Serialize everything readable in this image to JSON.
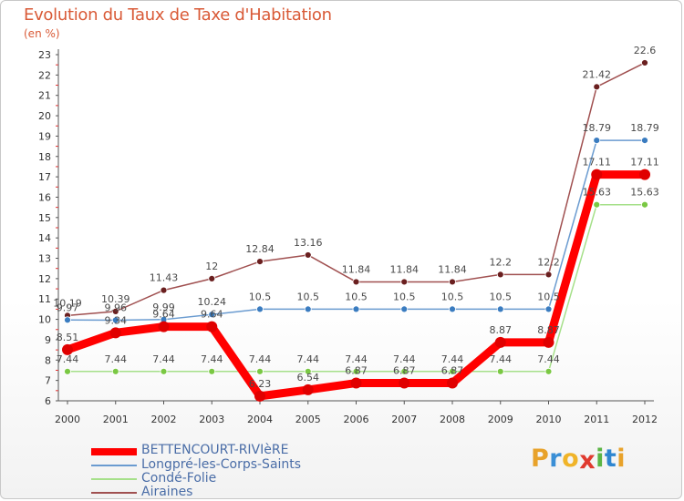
{
  "header": {
    "title": "Evolution du Taux de Taxe d'Habitation",
    "subtitle": "(en %)"
  },
  "brand": {
    "letters": [
      "P",
      "r",
      "o",
      "x",
      "i",
      "t",
      "i"
    ],
    "colors": [
      "#e8a22a",
      "#3a8fd6",
      "#f0b429",
      "#e03a2f",
      "#5bb545",
      "#2f86d0",
      "#e8a22a"
    ]
  },
  "chart_data": {
    "type": "line",
    "title": "Evolution du Taux de Taxe d'Habitation",
    "ylabel": "(en %)",
    "xlabel": "",
    "x": [
      "2000",
      "2001",
      "2002",
      "2003",
      "2004",
      "2005",
      "2006",
      "2007",
      "2008",
      "2009",
      "2010",
      "2011",
      "2012"
    ],
    "ylim": [
      6,
      23
    ],
    "yticks": [
      "6",
      "7",
      "8",
      "9",
      "10",
      "11",
      "12",
      "13",
      "14",
      "15",
      "16",
      "17",
      "18",
      "19",
      "20",
      "21",
      "22",
      "23"
    ],
    "grid": false,
    "legend_position": "bottom-left",
    "series": [
      {
        "name": "BETTENCOURT-RIVIèRE",
        "color": "#ff0000",
        "marker": "#e00000",
        "weight": "thick",
        "values": [
          8.51,
          9.34,
          9.64,
          9.64,
          6.23,
          6.54,
          6.87,
          6.87,
          6.87,
          8.87,
          8.87,
          17.11,
          17.11
        ],
        "labels": [
          "8.51",
          "9.34",
          "9.64",
          "9.64",
          "6.23",
          "6.54",
          "6.87",
          "6.87",
          "6.87",
          "8.87",
          "8.87",
          "17.11",
          "17.11"
        ]
      },
      {
        "name": "Longpré-les-Corps-Saints",
        "color": "#6a9bd0",
        "marker": "#3a7cc0",
        "weight": "thin",
        "values": [
          9.97,
          9.96,
          9.99,
          10.24,
          10.5,
          10.5,
          10.5,
          10.5,
          10.5,
          10.5,
          10.5,
          18.79,
          18.79
        ],
        "labels": [
          "9.97",
          "9.96",
          "9.99",
          "10.24",
          "10.5",
          "10.5",
          "10.5",
          "10.5",
          "10.5",
          "10.5",
          "10.5",
          "18.79",
          "18.79"
        ]
      },
      {
        "name": "Condé-Folie",
        "color": "#a6e08a",
        "marker": "#7ac843",
        "weight": "thin",
        "values": [
          7.44,
          7.44,
          7.44,
          7.44,
          7.44,
          7.44,
          7.44,
          7.44,
          7.44,
          7.44,
          7.44,
          15.63,
          15.63
        ],
        "labels": [
          "7.44",
          "7.44",
          "7.44",
          "7.44",
          "7.44",
          "7.44",
          "7.44",
          "7.44",
          "7.44",
          "7.44",
          "7.44",
          "15.63",
          "15.63"
        ]
      },
      {
        "name": "Airaines",
        "color": "#a05050",
        "marker": "#6a1f1f",
        "weight": "thin",
        "values": [
          10.19,
          10.39,
          11.43,
          12,
          12.84,
          13.16,
          11.84,
          11.84,
          11.84,
          12.2,
          12.2,
          21.42,
          22.6
        ],
        "labels": [
          "10.19",
          "10.39",
          "11.43",
          "12",
          "12.84",
          "13.16",
          "11.84",
          "11.84",
          "11.84",
          "12.2",
          "12.2",
          "21.42",
          "22.6"
        ]
      }
    ]
  }
}
